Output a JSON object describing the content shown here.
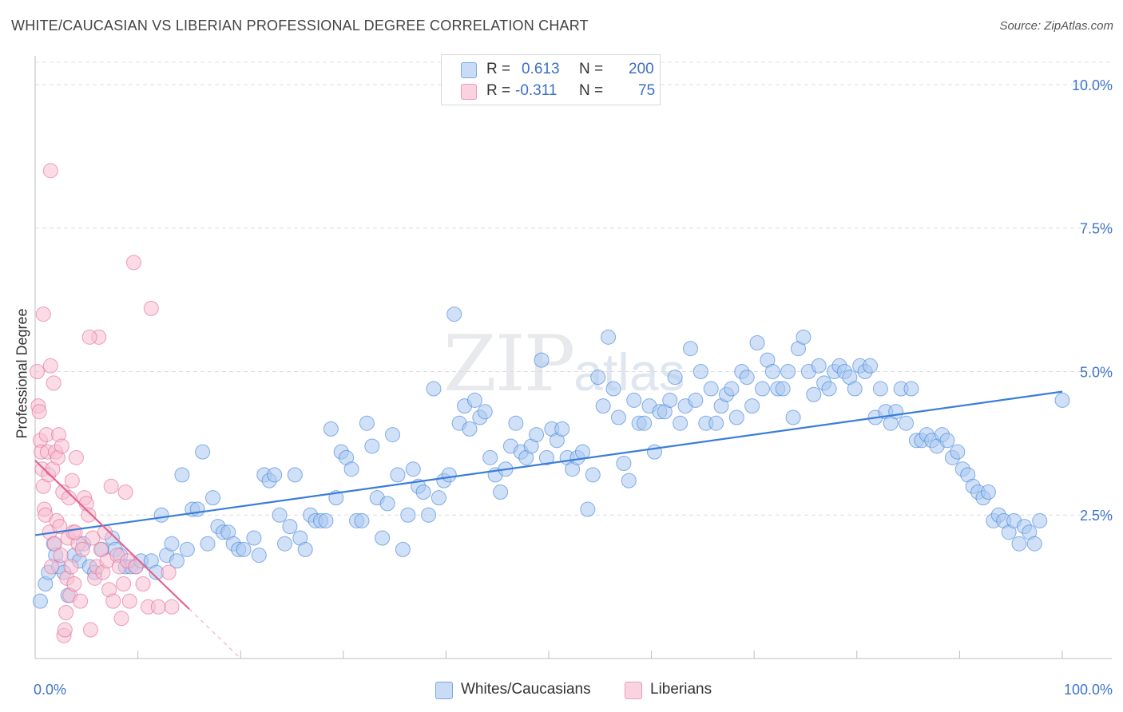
{
  "header": {
    "title": "WHITE/CAUCASIAN VS LIBERIAN PROFESSIONAL DEGREE CORRELATION CHART",
    "source": "Source: ZipAtlas.com"
  },
  "watermark": {
    "big": "ZIP",
    "small": "atlas"
  },
  "legend": {
    "r_label": "R =",
    "n_label": "N =",
    "rows": [
      {
        "r": "0.613",
        "n": "200",
        "color": "#7aa6e8"
      },
      {
        "r": "-0.311",
        "n": "75",
        "color": "#f19ab5"
      }
    ]
  },
  "bottom_legend": [
    {
      "label": "Whites/Caucasians",
      "color": "#7aa6e8"
    },
    {
      "label": "Liberians",
      "color": "#f19ab5"
    }
  ],
  "chart_data": {
    "type": "scatter",
    "title": "WHITE/CAUCASIAN VS LIBERIAN PROFESSIONAL DEGREE CORRELATION CHART",
    "xlabel": "",
    "ylabel": "Professional Degree",
    "xlim": [
      0,
      100
    ],
    "ylim": [
      0,
      10.5
    ],
    "x_tick_labels": [
      "0.0%",
      "100.0%"
    ],
    "y_ticks": [
      2.5,
      5.0,
      7.5,
      10.0
    ],
    "y_tick_labels": [
      "2.5%",
      "5.0%",
      "7.5%",
      "10.0%"
    ],
    "grid": true,
    "series": [
      {
        "name": "Whites/Caucasians",
        "color": "#3b7dd8",
        "fill": "#aac8f0",
        "trend": {
          "x0": 0,
          "y0": 2.15,
          "x1": 100,
          "y1": 4.65,
          "solid_to": 100
        },
        "points": [
          [
            0.5,
            1.0
          ],
          [
            1.0,
            1.3
          ],
          [
            1.3,
            1.5
          ],
          [
            1.8,
            2.0
          ],
          [
            2.0,
            1.8
          ],
          [
            2.3,
            1.6
          ],
          [
            2.8,
            1.5
          ],
          [
            3.2,
            1.1
          ],
          [
            3.8,
            1.8
          ],
          [
            4.3,
            1.7
          ],
          [
            4.7,
            2.0
          ],
          [
            5.3,
            1.6
          ],
          [
            5.8,
            1.5
          ],
          [
            6.5,
            1.9
          ],
          [
            7.5,
            2.1
          ],
          [
            7.8,
            1.9
          ],
          [
            8.3,
            1.8
          ],
          [
            8.8,
            1.6
          ],
          [
            9.3,
            1.6
          ],
          [
            9.8,
            1.6
          ],
          [
            10.3,
            1.7
          ],
          [
            11.3,
            1.7
          ],
          [
            11.8,
            1.5
          ],
          [
            12.3,
            2.5
          ],
          [
            12.8,
            1.8
          ],
          [
            13.3,
            2.0
          ],
          [
            13.8,
            1.7
          ],
          [
            14.3,
            3.2
          ],
          [
            14.8,
            1.9
          ],
          [
            15.3,
            2.6
          ],
          [
            15.8,
            2.6
          ],
          [
            16.3,
            3.6
          ],
          [
            16.8,
            2.0
          ],
          [
            17.3,
            2.8
          ],
          [
            17.8,
            2.3
          ],
          [
            18.3,
            2.2
          ],
          [
            18.8,
            2.2
          ],
          [
            19.3,
            2.0
          ],
          [
            19.8,
            1.9
          ],
          [
            20.3,
            1.9
          ],
          [
            21.3,
            2.1
          ],
          [
            21.8,
            1.8
          ],
          [
            22.3,
            3.2
          ],
          [
            22.8,
            3.1
          ],
          [
            23.3,
            3.2
          ],
          [
            23.8,
            2.5
          ],
          [
            24.3,
            2.0
          ],
          [
            24.8,
            2.3
          ],
          [
            25.3,
            3.2
          ],
          [
            25.8,
            2.1
          ],
          [
            26.3,
            1.9
          ],
          [
            26.8,
            2.5
          ],
          [
            27.3,
            2.4
          ],
          [
            27.8,
            2.4
          ],
          [
            28.3,
            2.4
          ],
          [
            28.8,
            4.0
          ],
          [
            29.3,
            2.8
          ],
          [
            29.8,
            3.6
          ],
          [
            30.3,
            3.5
          ],
          [
            30.8,
            3.3
          ],
          [
            31.3,
            2.4
          ],
          [
            31.8,
            2.4
          ],
          [
            32.3,
            4.1
          ],
          [
            32.8,
            3.7
          ],
          [
            33.3,
            2.8
          ],
          [
            33.8,
            2.1
          ],
          [
            34.3,
            2.7
          ],
          [
            34.8,
            3.9
          ],
          [
            35.3,
            3.2
          ],
          [
            35.8,
            1.9
          ],
          [
            36.3,
            2.5
          ],
          [
            36.8,
            3.3
          ],
          [
            37.3,
            3.0
          ],
          [
            37.8,
            2.9
          ],
          [
            38.3,
            2.5
          ],
          [
            38.8,
            4.7
          ],
          [
            39.3,
            2.8
          ],
          [
            39.8,
            3.1
          ],
          [
            40.3,
            3.2
          ],
          [
            40.8,
            6.0
          ],
          [
            41.3,
            4.1
          ],
          [
            41.8,
            4.4
          ],
          [
            42.3,
            4.0
          ],
          [
            42.8,
            4.5
          ],
          [
            43.3,
            4.2
          ],
          [
            43.8,
            4.3
          ],
          [
            44.3,
            3.5
          ],
          [
            44.8,
            3.2
          ],
          [
            45.3,
            2.9
          ],
          [
            45.8,
            3.3
          ],
          [
            46.3,
            3.7
          ],
          [
            46.8,
            4.1
          ],
          [
            47.3,
            3.6
          ],
          [
            47.8,
            3.5
          ],
          [
            48.3,
            3.7
          ],
          [
            48.8,
            3.9
          ],
          [
            49.3,
            5.2
          ],
          [
            49.8,
            3.5
          ],
          [
            50.3,
            4.0
          ],
          [
            50.8,
            3.8
          ],
          [
            51.3,
            4.0
          ],
          [
            51.8,
            3.5
          ],
          [
            52.3,
            3.3
          ],
          [
            52.8,
            3.5
          ],
          [
            53.3,
            3.6
          ],
          [
            53.8,
            2.6
          ],
          [
            54.3,
            3.2
          ],
          [
            54.8,
            4.9
          ],
          [
            55.3,
            4.4
          ],
          [
            55.8,
            5.6
          ],
          [
            56.3,
            4.7
          ],
          [
            56.8,
            4.2
          ],
          [
            57.3,
            3.4
          ],
          [
            57.8,
            3.1
          ],
          [
            58.3,
            4.5
          ],
          [
            58.8,
            4.1
          ],
          [
            59.3,
            4.1
          ],
          [
            59.8,
            4.4
          ],
          [
            60.3,
            3.6
          ],
          [
            60.8,
            4.3
          ],
          [
            61.3,
            4.3
          ],
          [
            61.8,
            4.5
          ],
          [
            62.3,
            4.9
          ],
          [
            62.8,
            4.1
          ],
          [
            63.3,
            4.4
          ],
          [
            63.8,
            5.4
          ],
          [
            64.3,
            4.5
          ],
          [
            64.8,
            5.0
          ],
          [
            65.3,
            4.1
          ],
          [
            65.8,
            4.7
          ],
          [
            66.3,
            4.1
          ],
          [
            66.8,
            4.4
          ],
          [
            67.3,
            4.6
          ],
          [
            67.8,
            4.7
          ],
          [
            68.3,
            4.2
          ],
          [
            68.8,
            5.0
          ],
          [
            69.3,
            4.9
          ],
          [
            69.8,
            4.4
          ],
          [
            70.3,
            5.5
          ],
          [
            70.8,
            4.7
          ],
          [
            71.3,
            5.2
          ],
          [
            71.8,
            5.0
          ],
          [
            72.3,
            4.7
          ],
          [
            72.8,
            4.7
          ],
          [
            73.3,
            5.0
          ],
          [
            73.8,
            4.2
          ],
          [
            74.3,
            5.4
          ],
          [
            74.8,
            5.6
          ],
          [
            75.3,
            5.0
          ],
          [
            75.8,
            4.6
          ],
          [
            76.3,
            5.1
          ],
          [
            76.8,
            4.8
          ],
          [
            77.3,
            4.7
          ],
          [
            77.8,
            5.0
          ],
          [
            78.3,
            5.1
          ],
          [
            78.8,
            5.0
          ],
          [
            79.3,
            4.9
          ],
          [
            79.8,
            4.7
          ],
          [
            80.3,
            5.1
          ],
          [
            80.8,
            5.0
          ],
          [
            81.3,
            5.1
          ],
          [
            81.8,
            4.2
          ],
          [
            82.3,
            4.7
          ],
          [
            82.8,
            4.3
          ],
          [
            83.3,
            4.1
          ],
          [
            83.8,
            4.3
          ],
          [
            84.3,
            4.7
          ],
          [
            84.8,
            4.1
          ],
          [
            85.3,
            4.7
          ],
          [
            85.8,
            3.8
          ],
          [
            86.3,
            3.8
          ],
          [
            86.8,
            3.9
          ],
          [
            87.3,
            3.8
          ],
          [
            87.8,
            3.7
          ],
          [
            88.3,
            3.9
          ],
          [
            88.8,
            3.8
          ],
          [
            89.3,
            3.5
          ],
          [
            89.8,
            3.6
          ],
          [
            90.3,
            3.3
          ],
          [
            90.8,
            3.2
          ],
          [
            91.3,
            3.0
          ],
          [
            91.8,
            2.9
          ],
          [
            92.3,
            2.8
          ],
          [
            92.8,
            2.9
          ],
          [
            93.3,
            2.4
          ],
          [
            93.8,
            2.5
          ],
          [
            94.3,
            2.4
          ],
          [
            94.8,
            2.2
          ],
          [
            95.3,
            2.4
          ],
          [
            95.8,
            2.0
          ],
          [
            96.3,
            2.3
          ],
          [
            96.8,
            2.2
          ],
          [
            97.3,
            2.0
          ],
          [
            97.8,
            2.4
          ],
          [
            100.0,
            4.5
          ]
        ]
      },
      {
        "name": "Liberians",
        "color": "#e2638f",
        "fill": "#f7c0d2",
        "trend": {
          "x0": 0,
          "y0": 3.45,
          "x1": 20,
          "y1": 0.0,
          "solid_to": 15
        },
        "points": [
          [
            0.2,
            5.0
          ],
          [
            0.3,
            4.4
          ],
          [
            0.4,
            4.3
          ],
          [
            0.5,
            3.8
          ],
          [
            0.6,
            3.6
          ],
          [
            0.7,
            3.3
          ],
          [
            0.8,
            3.0
          ],
          [
            0.9,
            2.6
          ],
          [
            1.0,
            2.5
          ],
          [
            1.1,
            3.9
          ],
          [
            1.2,
            3.6
          ],
          [
            1.3,
            3.2
          ],
          [
            1.4,
            2.2
          ],
          [
            1.5,
            5.1
          ],
          [
            1.6,
            1.6
          ],
          [
            1.7,
            3.3
          ],
          [
            1.8,
            4.8
          ],
          [
            1.9,
            2.0
          ],
          [
            2.0,
            3.6
          ],
          [
            2.1,
            2.4
          ],
          [
            2.2,
            3.5
          ],
          [
            2.3,
            3.9
          ],
          [
            2.4,
            2.3
          ],
          [
            2.5,
            1.8
          ],
          [
            2.6,
            3.7
          ],
          [
            2.7,
            2.9
          ],
          [
            2.8,
            0.4
          ],
          [
            2.9,
            0.5
          ],
          [
            3.0,
            0.8
          ],
          [
            3.1,
            1.4
          ],
          [
            3.2,
            2.1
          ],
          [
            3.3,
            2.8
          ],
          [
            3.4,
            1.1
          ],
          [
            3.5,
            1.6
          ],
          [
            3.6,
            3.1
          ],
          [
            3.7,
            2.2
          ],
          [
            3.8,
            1.3
          ],
          [
            4.0,
            3.5
          ],
          [
            4.2,
            2.0
          ],
          [
            4.4,
            1.0
          ],
          [
            4.6,
            1.9
          ],
          [
            4.8,
            2.8
          ],
          [
            5.0,
            2.7
          ],
          [
            5.2,
            2.5
          ],
          [
            5.4,
            0.5
          ],
          [
            5.6,
            2.1
          ],
          [
            5.8,
            1.4
          ],
          [
            6.0,
            1.6
          ],
          [
            6.2,
            5.6
          ],
          [
            6.4,
            1.9
          ],
          [
            6.6,
            1.5
          ],
          [
            6.8,
            2.2
          ],
          [
            7.0,
            1.7
          ],
          [
            7.2,
            1.2
          ],
          [
            7.4,
            3.0
          ],
          [
            7.6,
            1.0
          ],
          [
            8.0,
            1.8
          ],
          [
            8.2,
            1.6
          ],
          [
            8.4,
            0.7
          ],
          [
            8.6,
            1.3
          ],
          [
            8.8,
            2.9
          ],
          [
            9.0,
            1.7
          ],
          [
            9.2,
            1.0
          ],
          [
            9.6,
            6.9
          ],
          [
            9.8,
            1.6
          ],
          [
            10.5,
            1.3
          ],
          [
            11.0,
            0.9
          ],
          [
            11.3,
            6.1
          ],
          [
            12.0,
            0.9
          ],
          [
            13.0,
            1.5
          ],
          [
            13.3,
            0.9
          ],
          [
            1.5,
            8.5
          ],
          [
            0.8,
            6.0
          ],
          [
            5.3,
            5.6
          ],
          [
            3.9,
            2.2
          ]
        ]
      }
    ]
  }
}
